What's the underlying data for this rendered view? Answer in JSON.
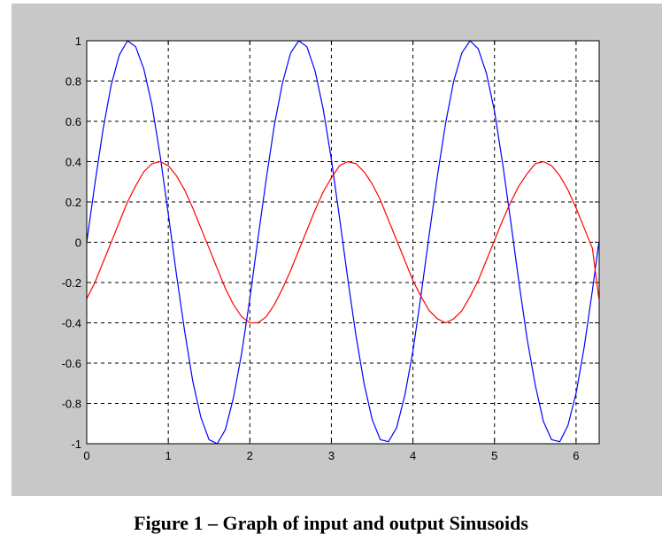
{
  "caption": "Figure 1 – Graph of input and output Sinusoids",
  "chart_data": {
    "type": "line",
    "title": "",
    "xlabel": "",
    "ylabel": "",
    "xlim": [
      0,
      6.2832
    ],
    "ylim": [
      -1,
      1
    ],
    "grid": true,
    "grid_style": "dashed",
    "legend": "none",
    "x_ticks": [
      0,
      1,
      2,
      3,
      4,
      5,
      6
    ],
    "x_tick_labels": [
      "0",
      "1",
      "2",
      "3",
      "4",
      "5",
      "6"
    ],
    "y_ticks": [
      -1,
      -0.8,
      -0.6,
      -0.4,
      -0.2,
      0,
      0.2,
      0.4,
      0.6,
      0.8,
      1
    ],
    "y_tick_labels": [
      "-1",
      "-0.8",
      "-0.6",
      "-0.4",
      "-0.2",
      "0",
      "0.2",
      "0.4",
      "0.6",
      "0.8",
      "1"
    ],
    "series": [
      {
        "color": "#0000ff",
        "x": [
          0,
          0.1,
          0.2,
          0.3,
          0.4,
          0.5,
          0.6,
          0.7,
          0.8,
          0.9,
          1.0,
          1.1,
          1.2,
          1.3,
          1.4,
          1.5,
          1.6,
          1.7,
          1.8,
          1.9,
          2.0,
          2.1,
          2.2,
          2.3,
          2.4,
          2.5,
          2.6,
          2.7,
          2.8,
          2.9,
          3.0,
          3.1,
          3.2,
          3.3,
          3.4,
          3.5,
          3.6,
          3.7,
          3.8,
          3.9,
          4.0,
          4.1,
          4.2,
          4.3,
          4.4,
          4.5,
          4.6,
          4.7,
          4.8,
          4.9,
          5.0,
          5.1,
          5.2,
          5.3,
          5.4,
          5.5,
          5.6,
          5.7,
          5.8,
          5.9,
          6.0,
          6.1,
          6.2,
          6.28
        ],
        "values": [
          0.0,
          0.29,
          0.56,
          0.78,
          0.93,
          1.0,
          0.97,
          0.86,
          0.68,
          0.43,
          0.14,
          -0.16,
          -0.44,
          -0.69,
          -0.87,
          -0.98,
          -1.0,
          -0.93,
          -0.77,
          -0.55,
          -0.28,
          0.02,
          0.31,
          0.58,
          0.79,
          0.94,
          1.0,
          0.97,
          0.85,
          0.66,
          0.41,
          0.12,
          -0.18,
          -0.46,
          -0.7,
          -0.88,
          -0.98,
          -0.99,
          -0.92,
          -0.76,
          -0.54,
          -0.26,
          0.04,
          0.33,
          0.59,
          0.8,
          0.94,
          1.0,
          0.96,
          0.84,
          0.65,
          0.39,
          0.1,
          -0.2,
          -0.48,
          -0.71,
          -0.89,
          -0.98,
          -0.99,
          -0.91,
          -0.75,
          -0.52,
          -0.24,
          0.0
        ]
      },
      {
        "color": "#ff0000",
        "x": [
          0,
          0.1,
          0.2,
          0.3,
          0.4,
          0.5,
          0.6,
          0.7,
          0.8,
          0.9,
          1.0,
          1.1,
          1.2,
          1.3,
          1.4,
          1.5,
          1.6,
          1.7,
          1.8,
          1.9,
          2.0,
          2.1,
          2.2,
          2.3,
          2.4,
          2.5,
          2.6,
          2.7,
          2.8,
          2.9,
          3.0,
          3.1,
          3.2,
          3.3,
          3.4,
          3.5,
          3.6,
          3.7,
          3.8,
          3.9,
          4.0,
          4.1,
          4.2,
          4.3,
          4.4,
          4.5,
          4.6,
          4.7,
          4.8,
          4.9,
          5.0,
          5.1,
          5.2,
          5.3,
          5.4,
          5.5,
          5.6,
          5.7,
          5.8,
          5.9,
          6.0,
          6.1,
          6.2,
          6.28
        ],
        "values": [
          -0.28,
          -0.2,
          -0.1,
          0.0,
          0.1,
          0.2,
          0.28,
          0.35,
          0.39,
          0.4,
          0.38,
          0.33,
          0.26,
          0.17,
          0.07,
          -0.03,
          -0.13,
          -0.23,
          -0.31,
          -0.37,
          -0.4,
          -0.4,
          -0.37,
          -0.31,
          -0.23,
          -0.14,
          -0.04,
          0.06,
          0.16,
          0.25,
          0.32,
          0.38,
          0.4,
          0.39,
          0.35,
          0.29,
          0.21,
          0.11,
          0.01,
          -0.09,
          -0.19,
          -0.27,
          -0.34,
          -0.38,
          -0.4,
          -0.38,
          -0.34,
          -0.27,
          -0.19,
          -0.09,
          0.01,
          0.11,
          0.2,
          0.28,
          0.34,
          0.39,
          0.4,
          0.38,
          0.33,
          0.26,
          0.17,
          0.07,
          -0.03,
          -0.28
        ]
      }
    ]
  }
}
